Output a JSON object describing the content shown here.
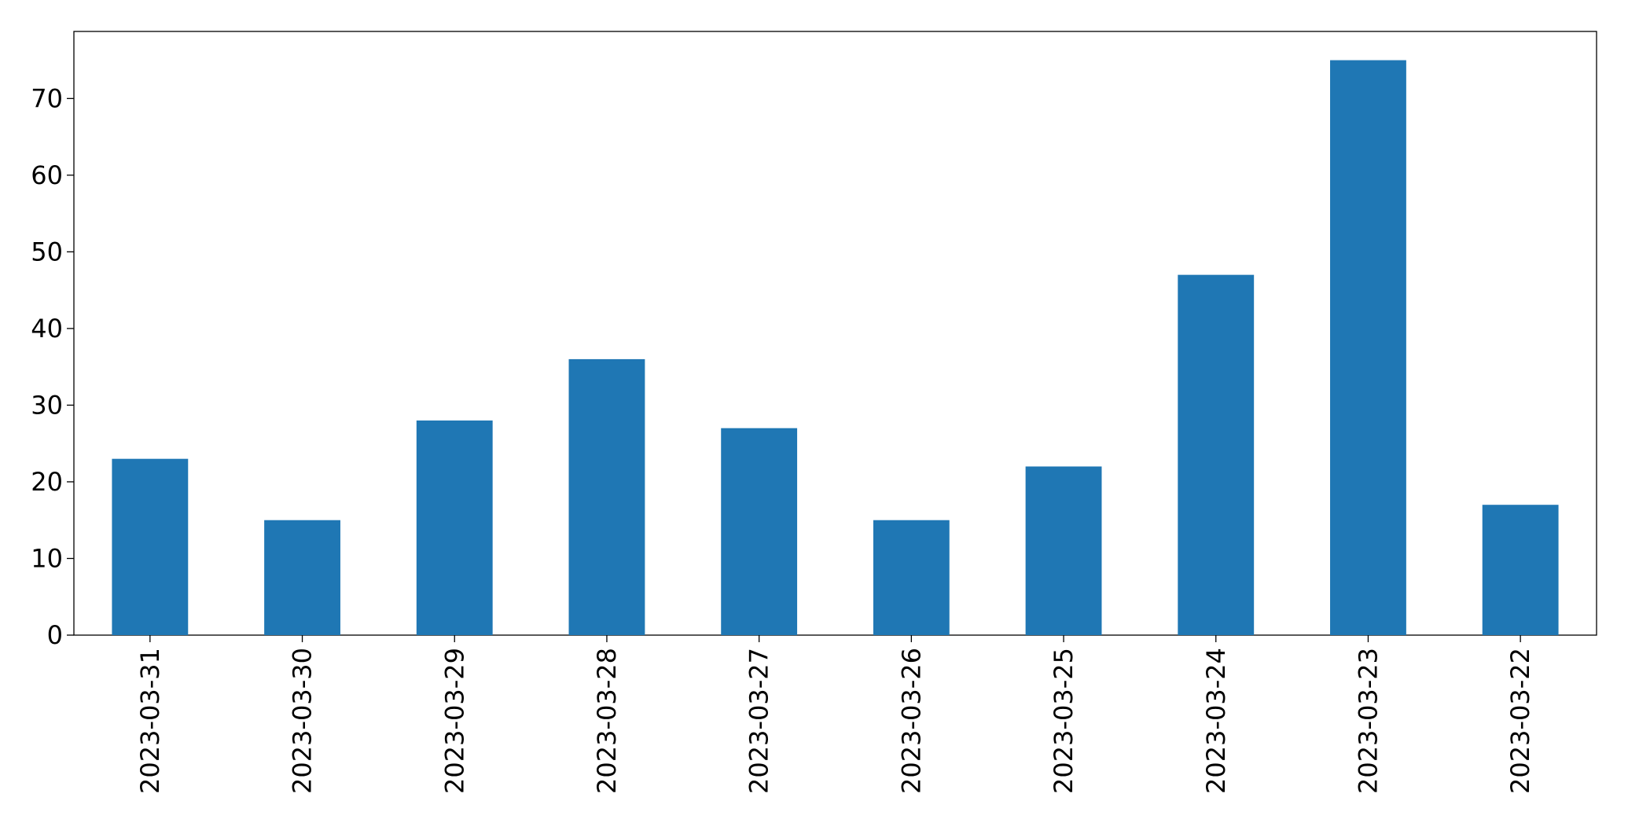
{
  "chart_data": {
    "type": "bar",
    "categories": [
      "2023-03-31",
      "2023-03-30",
      "2023-03-29",
      "2023-03-28",
      "2023-03-27",
      "2023-03-26",
      "2023-03-25",
      "2023-03-24",
      "2023-03-23",
      "2023-03-22"
    ],
    "values": [
      23,
      15,
      28,
      36,
      27,
      15,
      22,
      47,
      75,
      17
    ],
    "color": "#1f77b4",
    "ylim": [
      0,
      78.75
    ],
    "yticks": [
      0,
      10,
      20,
      30,
      40,
      50,
      60,
      70
    ],
    "grid": false
  }
}
